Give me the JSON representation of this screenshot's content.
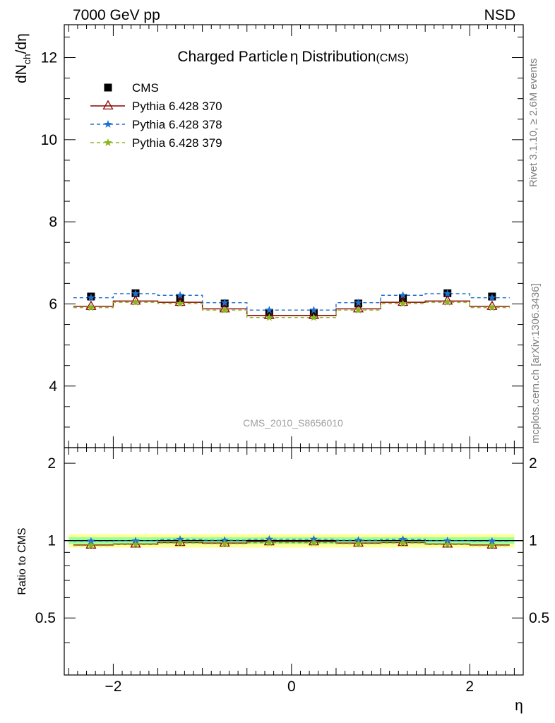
{
  "header": {
    "left": "7000 GeV pp",
    "right": "NSD"
  },
  "side_labels": {
    "rivet": "Rivet 3.1.10, ≥ 2.6M events",
    "mcplots": "mcplots.cern.ch [arXiv:1306.3436]"
  },
  "chart_data": [
    {
      "type": "line",
      "title": "Charged Particle",
      "title_eta": "η",
      "title_tail": "Distribution",
      "title_suffix": "(CMS)",
      "ylabel": "dN",
      "ylabel_sub": "ch",
      "ylabel_tail": "/dη",
      "ylim": [
        2.5,
        12.8
      ],
      "xlim": [
        -2.55,
        2.6
      ],
      "yticks": [
        4,
        6,
        8,
        10,
        12
      ],
      "watermark": "CMS_2010_S8656010",
      "legend_position": "top-left",
      "x": [
        -2.25,
        -1.75,
        -1.25,
        -0.75,
        -0.25,
        0.25,
        0.75,
        1.25,
        1.75,
        2.25
      ],
      "series": [
        {
          "name": "CMS",
          "color": "#000000",
          "marker": "square",
          "values": [
            6.18,
            6.26,
            6.14,
            6.01,
            5.78,
            5.78,
            6.01,
            6.14,
            6.26,
            6.18
          ]
        },
        {
          "name": "Pythia 6.428 370",
          "color": "#8b0000",
          "marker": "triangle",
          "dash": "none",
          "values": [
            5.94,
            6.07,
            6.04,
            5.88,
            5.72,
            5.72,
            5.88,
            6.04,
            6.07,
            5.94
          ]
        },
        {
          "name": "Pythia 6.428 378",
          "color": "#1f6fd0",
          "marker": "star",
          "dash": "5,4",
          "values": [
            6.15,
            6.25,
            6.21,
            6.03,
            5.85,
            5.85,
            6.03,
            6.21,
            6.25,
            6.15
          ]
        },
        {
          "name": "Pythia 6.428 379",
          "color": "#8ab61f",
          "marker": "star",
          "dash": "5,4",
          "values": [
            5.91,
            6.04,
            6.01,
            5.85,
            5.67,
            5.67,
            5.85,
            6.01,
            6.04,
            5.91
          ]
        }
      ]
    },
    {
      "type": "line",
      "ylabel": "Ratio to CMS",
      "xlabel": "η",
      "ylim": [
        0.3,
        2.3
      ],
      "xlim": [
        -2.55,
        2.6
      ],
      "yticks": [
        0.5,
        1,
        2
      ],
      "ytick_labels": [
        "0.5",
        "1",
        "2"
      ],
      "xticks": [
        -2,
        0,
        2
      ],
      "xtick_labels": [
        "−2",
        "0",
        "2"
      ],
      "bands": [
        {
          "lower": 0.94,
          "upper": 1.06,
          "color": "#ffff99"
        },
        {
          "lower": 0.97,
          "upper": 1.03,
          "color": "#99ff99"
        }
      ],
      "x": [
        -2.25,
        -1.75,
        -1.25,
        -0.75,
        -0.25,
        0.25,
        0.75,
        1.25,
        1.75,
        2.25
      ],
      "series": [
        {
          "name": "Pythia 6.428 370",
          "color": "#8b0000",
          "marker": "triangle",
          "dash": "none",
          "values": [
            0.961,
            0.97,
            0.984,
            0.978,
            0.99,
            0.99,
            0.978,
            0.984,
            0.97,
            0.961
          ]
        },
        {
          "name": "Pythia 6.428 378",
          "color": "#1f6fd0",
          "marker": "star",
          "dash": "5,4",
          "values": [
            0.995,
            0.998,
            1.011,
            1.003,
            1.012,
            1.012,
            1.003,
            1.011,
            0.998,
            0.995
          ]
        },
        {
          "name": "Pythia 6.428 379",
          "color": "#8ab61f",
          "marker": "star",
          "dash": "5,4",
          "values": [
            0.956,
            0.965,
            0.979,
            0.973,
            0.981,
            0.981,
            0.973,
            0.979,
            0.965,
            0.956
          ]
        }
      ]
    }
  ]
}
